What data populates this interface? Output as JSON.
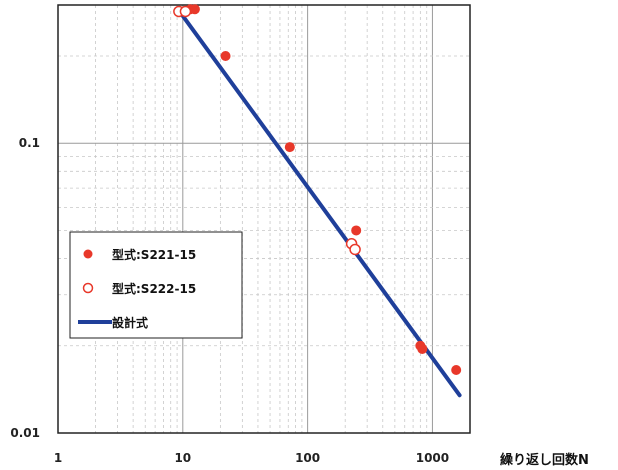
{
  "chart_data": {
    "type": "scatter",
    "title": "",
    "xlabel": "繰り返し回数N",
    "ylabel": "",
    "xscale": "log",
    "yscale": "log",
    "xlim": [
      1,
      2000
    ],
    "ylim": [
      0.01,
      0.3
    ],
    "x_ticks": [
      {
        "value": 1,
        "label": "1"
      },
      {
        "value": 10,
        "label": "10"
      },
      {
        "value": 100,
        "label": "100"
      },
      {
        "value": 1000,
        "label": "1000"
      }
    ],
    "y_ticks": [
      {
        "value": 0.01,
        "label": "0.01"
      },
      {
        "value": 0.1,
        "label": "0.1"
      }
    ],
    "grid": true,
    "legend_position": "left-lower",
    "series": [
      {
        "name": "型式:S221-15",
        "marker": "filled-circle",
        "color": "#e8382a",
        "points": [
          [
            11.5,
            0.29
          ],
          [
            12.5,
            0.29
          ],
          [
            22,
            0.2
          ],
          [
            72,
            0.097
          ],
          [
            245,
            0.05
          ],
          [
            800,
            0.02
          ],
          [
            830,
            0.0195
          ],
          [
            1550,
            0.0165
          ]
        ]
      },
      {
        "name": "型式:S222-15",
        "marker": "open-circle",
        "color": "#e8382a",
        "points": [
          [
            9.3,
            0.285
          ],
          [
            10.5,
            0.285
          ],
          [
            225,
            0.045
          ],
          [
            240,
            0.043
          ]
        ]
      },
      {
        "name": "設計式",
        "marker": "line",
        "color": "#1f3f9a",
        "points": [
          [
            10,
            0.275
          ],
          [
            1650,
            0.0135
          ]
        ]
      }
    ]
  }
}
